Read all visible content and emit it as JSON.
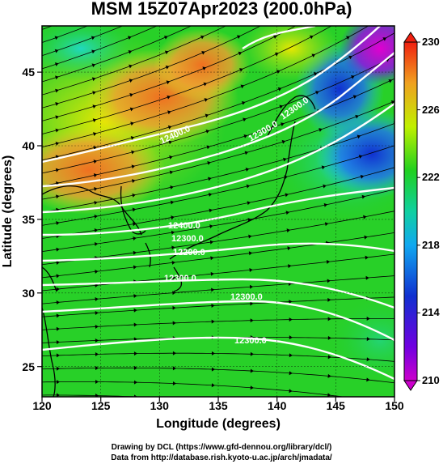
{
  "title": "MSM 15Z07Apr2023 (200.0hPa)",
  "xlabel": "Longitude (degrees)",
  "ylabel": "Latitude  (degrees)",
  "x_ticks": [
    "120",
    "125",
    "130",
    "135",
    "140",
    "145",
    "150"
  ],
  "y_ticks": [
    "25",
    "30",
    "35",
    "40",
    "45"
  ],
  "colorbar_ticks": [
    "210",
    "214",
    "218",
    "222",
    "226",
    "230"
  ],
  "contour_labels": [
    "12400.0",
    "12300.0",
    "12300.0",
    "12400.0",
    "12300.0",
    "12200.0",
    "12300.0",
    "12300.0",
    "12300.0"
  ],
  "credit_line1": "Drawing by DCL (https://www.gfd-dennou.org/library/dcl/)",
  "credit_line2": "Data from http://database.rish.kyoto-u.ac.jp/arch/jmadata/",
  "chart_data": {
    "type": "heatmap",
    "title": "MSM 15Z07Apr2023 (200.0hPa)",
    "xlabel": "Longitude (degrees)",
    "ylabel": "Latitude  (degrees)",
    "xlim": [
      120,
      150
    ],
    "ylim": [
      22.4,
      47.6
    ],
    "colorbar_range": [
      210,
      230
    ],
    "colors": {
      "low": "#cc00cc",
      "blue": "#1030d0",
      "cyan": "#10c8e0",
      "green": "#20d020",
      "yellow": "#e0f000",
      "orange": "#f0a020",
      "high": "#f02010"
    }
  }
}
